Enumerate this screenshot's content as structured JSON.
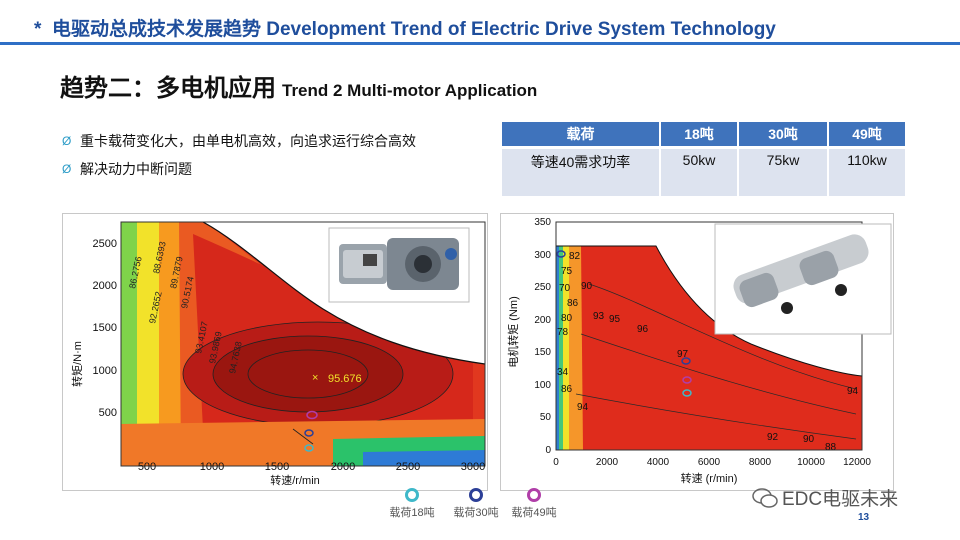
{
  "header": {
    "star": "*",
    "title": "电驱动总成技术发展趋势 Development Trend of Electric Drive System Technology"
  },
  "subtitle": {
    "zh": "趋势二：多电机应用",
    "en": "Trend 2 Multi-motor Application"
  },
  "bullets": [
    "重卡载荷变化大，由单电机高效，向追求运行综合高效",
    "解决动力中断问题"
  ],
  "table": {
    "headers": [
      "载荷",
      "18吨",
      "30吨",
      "49吨"
    ],
    "row": [
      "等速40需求功率",
      "50kw",
      "75kw",
      "110kw"
    ]
  },
  "left_map": {
    "ylabel": "转矩/N·m",
    "xlabel": "转速/r/min",
    "y_ticks": [
      "2500",
      "2000",
      "1500",
      "1000",
      "500"
    ],
    "x_ticks": [
      "500",
      "1000",
      "1500",
      "2000",
      "2500",
      "3000"
    ],
    "peak_label": "95.676",
    "contour_labels": [
      "88.6393",
      "89.7879",
      "90.5174",
      "86.2756",
      "92.2652",
      "93.4107",
      "93.9869",
      "94.7638"
    ]
  },
  "right_map": {
    "ylabel": "电机转矩 (Nm)",
    "xlabel": "转速  (r/min)",
    "y_ticks": [
      "350",
      "300",
      "250",
      "200",
      "150",
      "100",
      "50",
      "0"
    ],
    "x_ticks": [
      "0",
      "2000",
      "4000",
      "6000",
      "8000",
      "10000",
      "12000"
    ],
    "contour_labels": [
      "82",
      "75",
      "70",
      "90",
      "86",
      "80",
      "93",
      "95",
      "96",
      "78",
      "34",
      "86",
      "94",
      "97",
      "94",
      "92",
      "90",
      "88"
    ]
  },
  "legend": [
    {
      "label": "载荷18吨",
      "color": "#3fb8c9"
    },
    {
      "label": "载荷30吨",
      "color": "#2c3f97"
    },
    {
      "label": "载荷49吨",
      "color": "#b03ea8"
    }
  ],
  "watermark": "EDC电驱未来",
  "page_number": "13"
}
